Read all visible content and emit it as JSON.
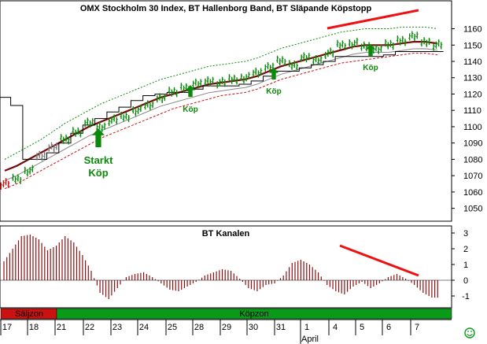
{
  "chart_data": [
    {
      "type": "ohlc",
      "title": "OMX Stockholm 30 Index, BT Hallenborg Band, BT Släpande Köpstopp",
      "ylim": [
        1045,
        1167
      ],
      "y_ticks": [
        1050,
        1060,
        1070,
        1080,
        1090,
        1100,
        1110,
        1120,
        1130,
        1140,
        1150,
        1160
      ],
      "x_ticks": [
        "17",
        "18",
        "21",
        "22",
        "23",
        "24",
        "25",
        "28",
        "29",
        "30",
        "31",
        "1",
        "4",
        "5",
        "6",
        "7"
      ],
      "x_month_label": "April",
      "grid": false,
      "series": [
        {
          "kind": "price_bars",
          "values": [
            1065,
            1068,
            1073,
            1082,
            1088,
            1092,
            1097,
            1102,
            1100,
            1104,
            1106,
            1110,
            1113,
            1118,
            1121,
            1124,
            1126,
            1128,
            1127,
            1129,
            1130,
            1133,
            1137,
            1140,
            1138,
            1142,
            1141,
            1145,
            1150,
            1151,
            1149,
            1148,
            1150,
            1153,
            1155,
            1152,
            1150
          ]
        },
        {
          "kind": "band_mid",
          "values": [
            1073,
            1076,
            1080,
            1084,
            1088,
            1092,
            1096,
            1100,
            1103,
            1106,
            1109,
            1112,
            1115,
            1118,
            1120,
            1122,
            1124,
            1126,
            1127,
            1128,
            1129,
            1131,
            1134,
            1137,
            1139,
            1141,
            1143,
            1145,
            1147,
            1149,
            1150,
            1150,
            1150,
            1151,
            1152,
            1152,
            1151
          ]
        },
        {
          "kind": "band_low",
          "values": [
            1062,
            1065,
            1069,
            1073,
            1077,
            1081,
            1085,
            1089,
            1093,
            1096,
            1099,
            1102,
            1105,
            1108,
            1111,
            1113,
            1115,
            1117,
            1119,
            1120,
            1121,
            1123,
            1126,
            1129,
            1131,
            1133,
            1135,
            1137,
            1139,
            1140,
            1141,
            1142,
            1143,
            1144,
            1145,
            1145,
            1144
          ]
        },
        {
          "kind": "band_high",
          "values": [
            1080,
            1084,
            1088,
            1092,
            1097,
            1102,
            1106,
            1110,
            1114,
            1117,
            1120,
            1123,
            1126,
            1129,
            1131,
            1133,
            1135,
            1137,
            1138,
            1139,
            1140,
            1142,
            1145,
            1148,
            1150,
            1152,
            1154,
            1156,
            1158,
            1159,
            1160,
            1160,
            1160,
            1161,
            1161,
            1161,
            1160
          ]
        },
        {
          "kind": "trailing_stop",
          "values": [
            1118,
            1113,
            1080,
            1080,
            1084,
            1090,
            1096,
            1101,
            1105,
            1109,
            1112,
            1116,
            1119,
            1120,
            1121,
            1121,
            1123,
            1125,
            1125,
            1125,
            1126,
            1128,
            1131,
            1134,
            1134,
            1136,
            1138,
            1140,
            1143,
            1143,
            1143,
            1143,
            1144,
            1146,
            1146,
            1146,
            1146
          ]
        }
      ],
      "annotations": [
        {
          "text": "Starkt",
          "x": "18",
          "y": 1080
        },
        {
          "text": "Köp",
          "x": "18",
          "y": 1071
        },
        {
          "text": "Köp",
          "x": "24",
          "y": 1109
        },
        {
          "text": "Köp",
          "x": "31",
          "y": 1123
        },
        {
          "text": "Köp",
          "x": "5",
          "y": 1134
        }
      ]
    },
    {
      "type": "bar",
      "title": "BT Kanalen",
      "ylim": [
        -1.5,
        3.2
      ],
      "y_ticks": [
        "3",
        "2",
        "1",
        "0",
        "-1"
      ],
      "values": [
        1.2,
        2.0,
        2.8,
        2.9,
        2.6,
        1.9,
        2.2,
        2.8,
        2.4,
        1.6,
        0.6,
        -0.8,
        -1.2,
        -0.5,
        0.2,
        0.4,
        0.5,
        0.2,
        -0.2,
        -0.6,
        -0.7,
        -0.4,
        -0.1,
        0.3,
        0.5,
        0.7,
        0.6,
        0.1,
        -0.5,
        -0.7,
        -0.3,
        -0.2,
        0.3,
        1.1,
        1.3,
        1.0,
        0.5,
        -0.3,
        -0.7,
        -0.9,
        -0.4,
        -0.1,
        -0.5,
        -0.2,
        0.2,
        0.4,
        0.1,
        -0.3,
        -0.8,
        -1.1
      ]
    }
  ],
  "zones": {
    "salj": "Säljzon",
    "kop": "Köpzon"
  },
  "colors": {
    "up_bar": "#0a8a0a",
    "neutral_bar": "#7a7a7a",
    "down_bar": "#cc1111",
    "band_mid": "#7a0a0a",
    "band_low": "#cc1111",
    "band_high": "#0a8a0a",
    "trailing_stop": "#000000",
    "osc_bar": "#8b1010",
    "trend_line": "#ee1111",
    "sell_zone": "#cc1111",
    "buy_zone": "#0a9a1a",
    "arrow": "#0a8a0a"
  }
}
